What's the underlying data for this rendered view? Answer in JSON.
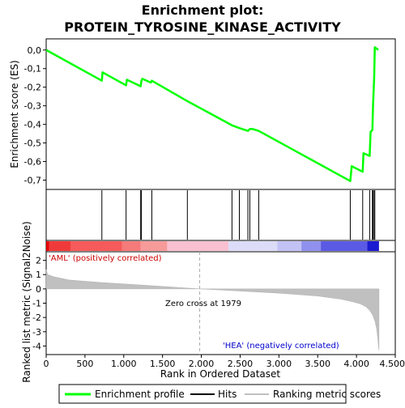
{
  "chart_data": {
    "type": "line",
    "title_line1": "Enrichment plot:",
    "title_line2": "PROTEIN_TYROSINE_KINASE_ACTIVITY",
    "es_panel": {
      "ylabel": "Enrichment score (ES)",
      "ylim": [
        -0.75,
        0.06
      ],
      "yticks": [
        "0,0",
        "-0,1",
        "-0,2",
        "-0,3",
        "-0,4",
        "-0,5",
        "-0,6",
        "-0,7"
      ],
      "ytick_values": [
        0.0,
        -0.1,
        -0.2,
        -0.3,
        -0.4,
        -0.5,
        -0.6,
        -0.7
      ],
      "grid": false,
      "series_name": "Enrichment profile",
      "series_color": "#00ff00",
      "x": [
        0,
        718,
        726,
        1030,
        1040,
        1218,
        1228,
        1240,
        1350,
        1362,
        1820,
        2395,
        2490,
        2600,
        2625,
        2660,
        2740,
        3920,
        3938,
        4080,
        4090,
        4170,
        4182,
        4205,
        4213,
        4228,
        4236,
        4280
      ],
      "y": [
        0.0,
        -0.165,
        -0.12,
        -0.19,
        -0.16,
        -0.195,
        -0.165,
        -0.155,
        -0.175,
        -0.165,
        -0.275,
        -0.405,
        -0.42,
        -0.435,
        -0.425,
        -0.425,
        -0.435,
        -0.705,
        -0.625,
        -0.655,
        -0.555,
        -0.57,
        -0.44,
        -0.43,
        -0.3,
        -0.15,
        0.015,
        0.0
      ]
    },
    "hits": {
      "legend": "Hits",
      "x": [
        718,
        1030,
        1218,
        1228,
        1362,
        1820,
        2395,
        2490,
        2600,
        2625,
        2740,
        3920,
        4080,
        4170,
        4205,
        4213,
        4228,
        4236
      ]
    },
    "metric_panel": {
      "ylabel": "Ranked list metric (Signal2Noise)",
      "ylim": [
        -4.6,
        2.6
      ],
      "yticks": [
        "2",
        "1",
        "0",
        "-1",
        "-2",
        "-3",
        "-4"
      ],
      "ytick_values": [
        2,
        1,
        0,
        -1,
        -2,
        -3,
        -4
      ],
      "legend": "Ranking metric scores",
      "fill_color": "#c0c0c0",
      "x": [
        0,
        20,
        100,
        300,
        700,
        1200,
        1700,
        1979,
        2400,
        3000,
        3500,
        3800,
        3950,
        4050,
        4120,
        4170,
        4210,
        4240,
        4260,
        4275,
        4285,
        4290
      ],
      "y": [
        1.35,
        1.0,
        0.85,
        0.62,
        0.45,
        0.28,
        0.1,
        0.0,
        -0.12,
        -0.3,
        -0.5,
        -0.72,
        -0.9,
        -1.05,
        -1.25,
        -1.5,
        -1.85,
        -2.3,
        -2.8,
        -3.5,
        -4.1,
        -4.3
      ],
      "zero_cross_x": 1979,
      "zero_cross_label": "Zero cross at 1979",
      "pos_label": "'AML' (positively correlated)",
      "neg_label": "'HEA' (negatively correlated)"
    },
    "gradient_bar": {
      "segments": [
        {
          "from": 0,
          "to": 40,
          "color": "#e60000"
        },
        {
          "from": 40,
          "to": 320,
          "color": "#f03a3a"
        },
        {
          "from": 320,
          "to": 980,
          "color": "#f65a5a"
        },
        {
          "from": 980,
          "to": 1220,
          "color": "#f57a7a"
        },
        {
          "from": 1220,
          "to": 1560,
          "color": "#f79a9a"
        },
        {
          "from": 1560,
          "to": 2350,
          "color": "#f8c0d0"
        },
        {
          "from": 2350,
          "to": 2980,
          "color": "#dcdcf8"
        },
        {
          "from": 2980,
          "to": 3290,
          "color": "#c2c2f4"
        },
        {
          "from": 3290,
          "to": 3540,
          "color": "#9090ee"
        },
        {
          "from": 3540,
          "to": 4140,
          "color": "#5a5ae4"
        },
        {
          "from": 4140,
          "to": 4290,
          "color": "#1a1ad0"
        }
      ]
    },
    "xaxis": {
      "label": "Rank in Ordered Dataset",
      "xlim": [
        0,
        4500
      ],
      "ticks": [
        "0",
        "500",
        "1.000",
        "1.500",
        "2.000",
        "2.500",
        "3.000",
        "3.500",
        "4.000",
        "4.500"
      ],
      "tick_values": [
        0,
        500,
        1000,
        1500,
        2000,
        2500,
        3000,
        3500,
        4000,
        4500
      ]
    }
  }
}
